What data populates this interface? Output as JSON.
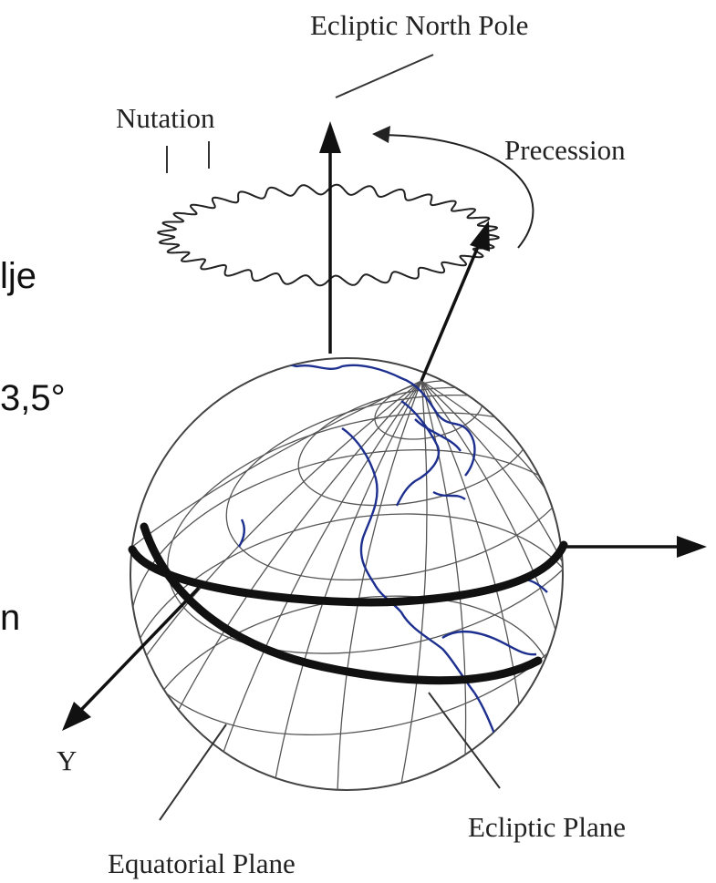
{
  "labels": {
    "ecliptic_north_pole": "Ecliptic North Pole",
    "nutation": "Nutation",
    "precession": "Precession",
    "ecliptic_plane": "Ecliptic Plane",
    "equatorial_plane": "Equatorial Plane",
    "vernal_equinox_symbol": "Υ"
  },
  "side_text": {
    "line1": "lje",
    "line2": "3,5°",
    "line3": "n"
  },
  "colors": {
    "ink": "#111111",
    "coastline": "#1d2f8f",
    "grid": "#555555",
    "background": "#ffffff"
  }
}
